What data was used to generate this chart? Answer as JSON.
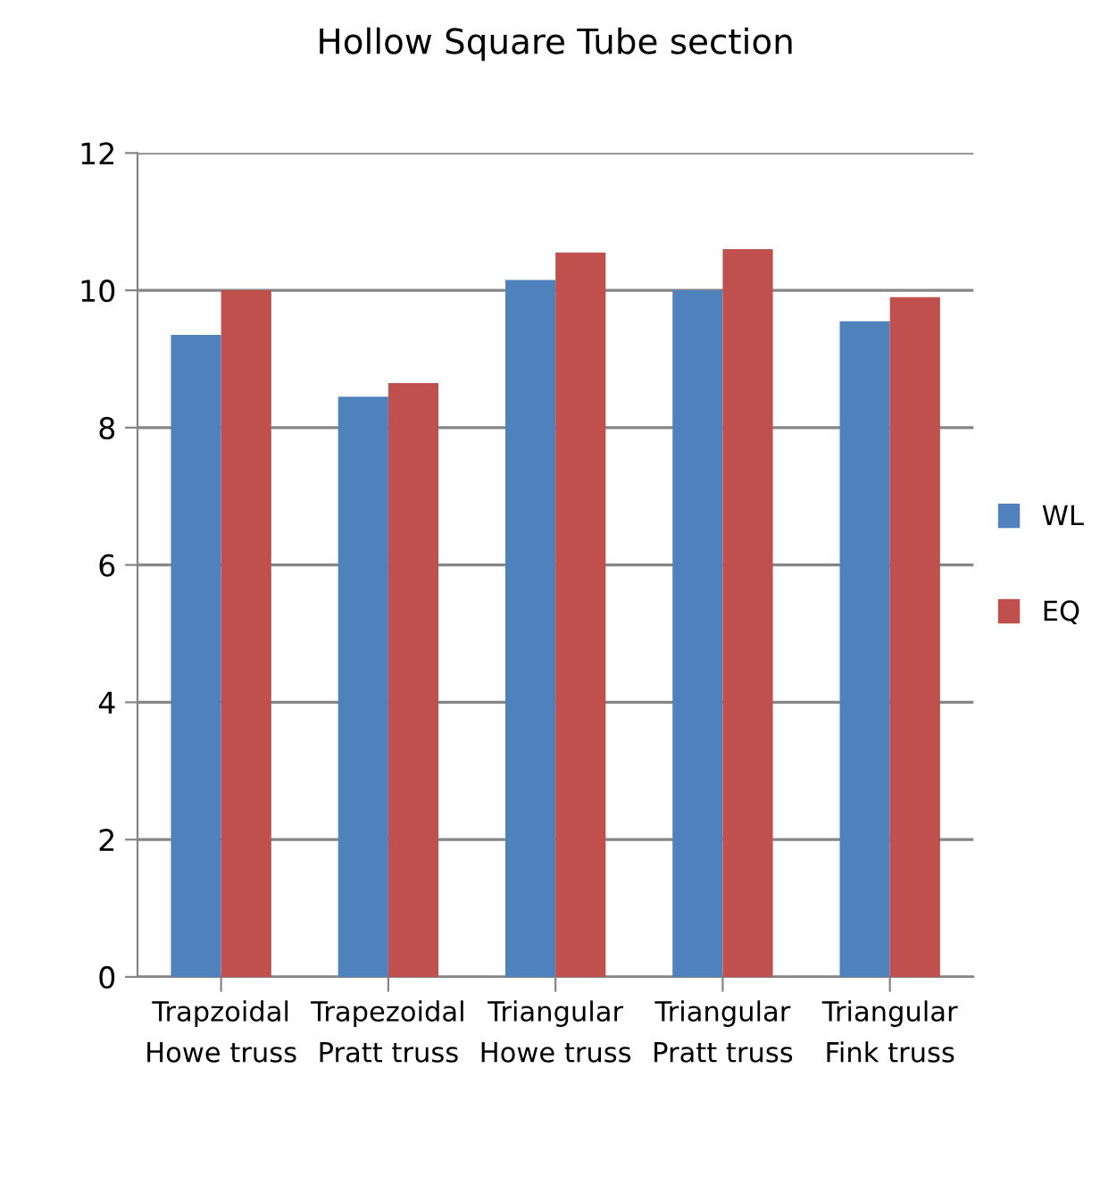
{
  "chart_data": {
    "type": "bar",
    "title": "Hollow Square Tube section",
    "categories": [
      "Trapzoidal\nHowe truss",
      "Trapezoidal\nPratt truss",
      "Triangular\nHowe truss",
      "Triangular\nPratt truss",
      "Triangular\nFink truss"
    ],
    "series": [
      {
        "name": "WL",
        "color": "#4f81bd",
        "values": [
          9.35,
          8.45,
          10.15,
          10.0,
          9.55
        ]
      },
      {
        "name": "EQ",
        "color": "#c0504d",
        "values": [
          10.0,
          8.65,
          10.55,
          10.6,
          9.9
        ]
      }
    ],
    "ylim": [
      0,
      12
    ],
    "yticks": [
      0,
      2,
      4,
      6,
      8,
      10,
      12
    ],
    "grid": "y",
    "legend": "right"
  }
}
